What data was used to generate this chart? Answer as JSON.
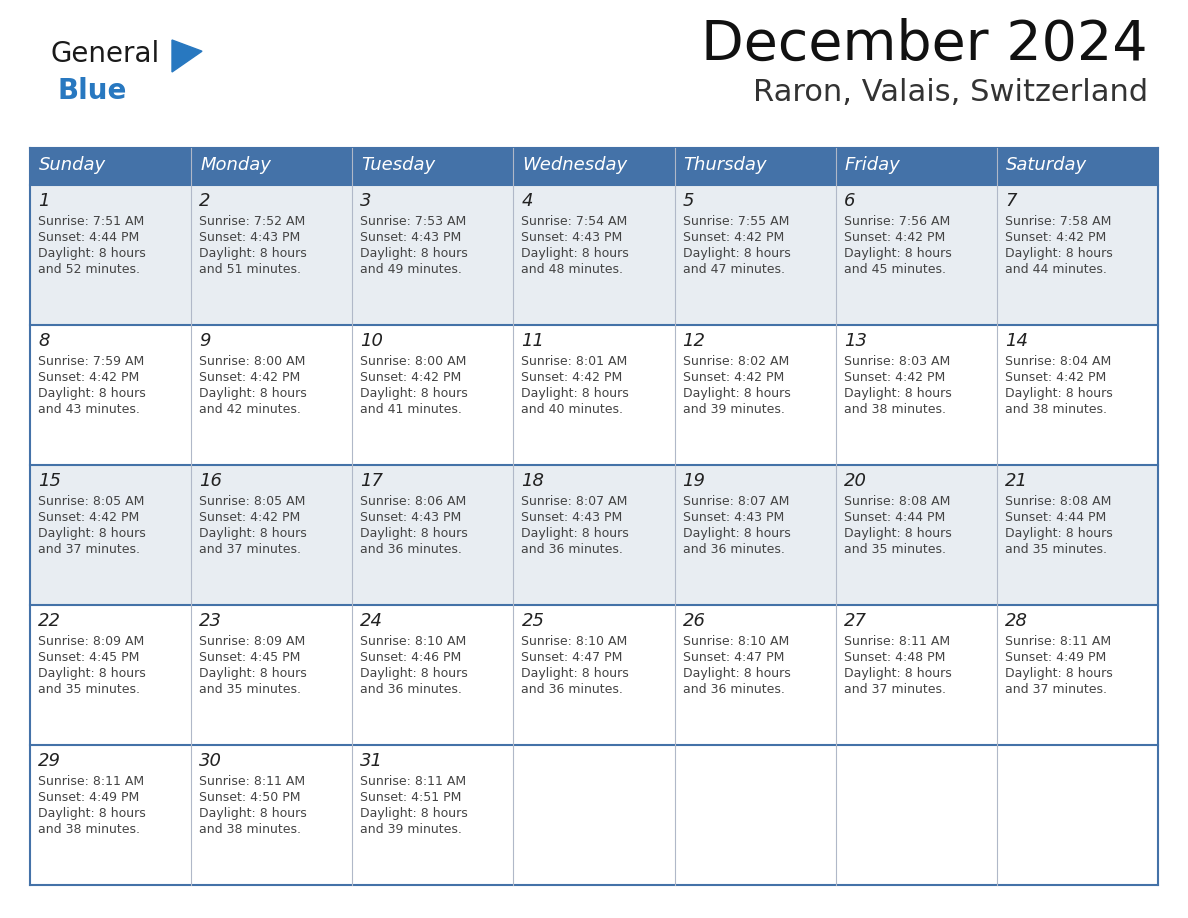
{
  "title": "December 2024",
  "subtitle": "Raron, Valais, Switzerland",
  "days_of_week": [
    "Sunday",
    "Monday",
    "Tuesday",
    "Wednesday",
    "Thursday",
    "Friday",
    "Saturday"
  ],
  "header_bg": "#4472a8",
  "header_text": "#ffffff",
  "cell_bg_odd_row": "#e8edf2",
  "cell_bg_even_row": "#ffffff",
  "cell_border_color": "#4472a8",
  "cell_text_color": "#444444",
  "calendar_data": [
    [
      {
        "day": 1,
        "sunrise": "7:51 AM",
        "sunset": "4:44 PM",
        "daylight_minutes": "52"
      },
      {
        "day": 2,
        "sunrise": "7:52 AM",
        "sunset": "4:43 PM",
        "daylight_minutes": "51"
      },
      {
        "day": 3,
        "sunrise": "7:53 AM",
        "sunset": "4:43 PM",
        "daylight_minutes": "49"
      },
      {
        "day": 4,
        "sunrise": "7:54 AM",
        "sunset": "4:43 PM",
        "daylight_minutes": "48"
      },
      {
        "day": 5,
        "sunrise": "7:55 AM",
        "sunset": "4:42 PM",
        "daylight_minutes": "47"
      },
      {
        "day": 6,
        "sunrise": "7:56 AM",
        "sunset": "4:42 PM",
        "daylight_minutes": "45"
      },
      {
        "day": 7,
        "sunrise": "7:58 AM",
        "sunset": "4:42 PM",
        "daylight_minutes": "44"
      }
    ],
    [
      {
        "day": 8,
        "sunrise": "7:59 AM",
        "sunset": "4:42 PM",
        "daylight_minutes": "43"
      },
      {
        "day": 9,
        "sunrise": "8:00 AM",
        "sunset": "4:42 PM",
        "daylight_minutes": "42"
      },
      {
        "day": 10,
        "sunrise": "8:00 AM",
        "sunset": "4:42 PM",
        "daylight_minutes": "41"
      },
      {
        "day": 11,
        "sunrise": "8:01 AM",
        "sunset": "4:42 PM",
        "daylight_minutes": "40"
      },
      {
        "day": 12,
        "sunrise": "8:02 AM",
        "sunset": "4:42 PM",
        "daylight_minutes": "39"
      },
      {
        "day": 13,
        "sunrise": "8:03 AM",
        "sunset": "4:42 PM",
        "daylight_minutes": "38"
      },
      {
        "day": 14,
        "sunrise": "8:04 AM",
        "sunset": "4:42 PM",
        "daylight_minutes": "38"
      }
    ],
    [
      {
        "day": 15,
        "sunrise": "8:05 AM",
        "sunset": "4:42 PM",
        "daylight_minutes": "37"
      },
      {
        "day": 16,
        "sunrise": "8:05 AM",
        "sunset": "4:42 PM",
        "daylight_minutes": "37"
      },
      {
        "day": 17,
        "sunrise": "8:06 AM",
        "sunset": "4:43 PM",
        "daylight_minutes": "36"
      },
      {
        "day": 18,
        "sunrise": "8:07 AM",
        "sunset": "4:43 PM",
        "daylight_minutes": "36"
      },
      {
        "day": 19,
        "sunrise": "8:07 AM",
        "sunset": "4:43 PM",
        "daylight_minutes": "36"
      },
      {
        "day": 20,
        "sunrise": "8:08 AM",
        "sunset": "4:44 PM",
        "daylight_minutes": "35"
      },
      {
        "day": 21,
        "sunrise": "8:08 AM",
        "sunset": "4:44 PM",
        "daylight_minutes": "35"
      }
    ],
    [
      {
        "day": 22,
        "sunrise": "8:09 AM",
        "sunset": "4:45 PM",
        "daylight_minutes": "35"
      },
      {
        "day": 23,
        "sunrise": "8:09 AM",
        "sunset": "4:45 PM",
        "daylight_minutes": "35"
      },
      {
        "day": 24,
        "sunrise": "8:10 AM",
        "sunset": "4:46 PM",
        "daylight_minutes": "36"
      },
      {
        "day": 25,
        "sunrise": "8:10 AM",
        "sunset": "4:47 PM",
        "daylight_minutes": "36"
      },
      {
        "day": 26,
        "sunrise": "8:10 AM",
        "sunset": "4:47 PM",
        "daylight_minutes": "36"
      },
      {
        "day": 27,
        "sunrise": "8:11 AM",
        "sunset": "4:48 PM",
        "daylight_minutes": "37"
      },
      {
        "day": 28,
        "sunrise": "8:11 AM",
        "sunset": "4:49 PM",
        "daylight_minutes": "37"
      }
    ],
    [
      {
        "day": 29,
        "sunrise": "8:11 AM",
        "sunset": "4:49 PM",
        "daylight_minutes": "38"
      },
      {
        "day": 30,
        "sunrise": "8:11 AM",
        "sunset": "4:50 PM",
        "daylight_minutes": "38"
      },
      {
        "day": 31,
        "sunrise": "8:11 AM",
        "sunset": "4:51 PM",
        "daylight_minutes": "39"
      },
      null,
      null,
      null,
      null
    ]
  ],
  "logo_general_color": "#1a1a1a",
  "logo_blue_color": "#2878c0",
  "logo_triangle_color": "#2878c0",
  "fig_width": 11.88,
  "fig_height": 9.18,
  "dpi": 100
}
